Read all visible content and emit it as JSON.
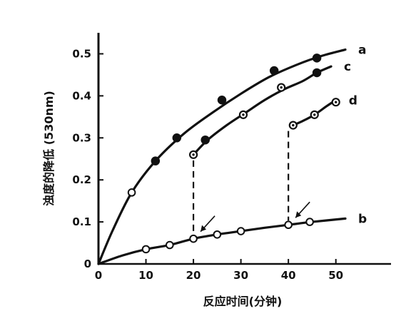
{
  "chart_data": {
    "type": "line",
    "xlabel": "反应时间(分钟)",
    "ylabel": "浊度的降低 (530nm)",
    "xlim": [
      0,
      52
    ],
    "ylim": [
      0,
      0.55
    ],
    "x_ticks": [
      0,
      10,
      20,
      30,
      40,
      50
    ],
    "x_tick_labels": [
      "0",
      "10",
      "20",
      "30",
      "40",
      "50"
    ],
    "y_ticks": [
      0,
      0.1,
      0.2,
      0.3,
      0.4,
      0.5
    ],
    "y_tick_labels": [
      "0",
      "0.1",
      "0.2",
      "0.3",
      "0.4",
      "0.5"
    ],
    "grid": false,
    "series": [
      {
        "name": "a",
        "curve": [
          [
            0,
            0
          ],
          [
            3,
            0.08
          ],
          [
            7,
            0.17
          ],
          [
            12,
            0.245
          ],
          [
            18,
            0.31
          ],
          [
            24,
            0.36
          ],
          [
            30,
            0.405
          ],
          [
            36,
            0.445
          ],
          [
            42,
            0.475
          ],
          [
            47,
            0.495
          ],
          [
            52,
            0.51
          ]
        ],
        "points": [
          {
            "x": 7,
            "y": 0.17,
            "marker": "open"
          },
          {
            "x": 12,
            "y": 0.245,
            "marker": "filled"
          },
          {
            "x": 16.5,
            "y": 0.3,
            "marker": "filled"
          },
          {
            "x": 26,
            "y": 0.39,
            "marker": "filled"
          },
          {
            "x": 37,
            "y": 0.46,
            "marker": "filled"
          },
          {
            "x": 46,
            "y": 0.49,
            "marker": "filled"
          }
        ]
      },
      {
        "name": "c",
        "curve": [
          [
            20,
            0.26
          ],
          [
            23,
            0.295
          ],
          [
            27,
            0.33
          ],
          [
            31,
            0.36
          ],
          [
            35,
            0.39
          ],
          [
            39,
            0.415
          ],
          [
            43,
            0.435
          ],
          [
            46,
            0.455
          ],
          [
            49,
            0.47
          ]
        ],
        "points": [
          {
            "x": 20,
            "y": 0.26,
            "marker": "open-dot"
          },
          {
            "x": 22.5,
            "y": 0.295,
            "marker": "filled"
          },
          {
            "x": 30.5,
            "y": 0.355,
            "marker": "open-dot"
          },
          {
            "x": 38.5,
            "y": 0.42,
            "marker": "open-dot"
          },
          {
            "x": 46,
            "y": 0.455,
            "marker": "filled"
          }
        ]
      },
      {
        "name": "d",
        "curve": [
          [
            41,
            0.33
          ],
          [
            43,
            0.34
          ],
          [
            45.5,
            0.355
          ],
          [
            48,
            0.375
          ],
          [
            50,
            0.39
          ]
        ],
        "points": [
          {
            "x": 41,
            "y": 0.33,
            "marker": "open-dot"
          },
          {
            "x": 45.5,
            "y": 0.355,
            "marker": "open-dot"
          },
          {
            "x": 50,
            "y": 0.385,
            "marker": "open-dot"
          }
        ]
      },
      {
        "name": "b",
        "curve": [
          [
            0,
            0
          ],
          [
            5,
            0.02
          ],
          [
            10,
            0.035
          ],
          [
            15,
            0.045
          ],
          [
            20,
            0.06
          ],
          [
            25,
            0.07
          ],
          [
            30,
            0.078
          ],
          [
            35,
            0.086
          ],
          [
            40,
            0.093
          ],
          [
            45,
            0.1
          ],
          [
            52,
            0.108
          ]
        ],
        "points": [
          {
            "x": 10,
            "y": 0.035,
            "marker": "open"
          },
          {
            "x": 15,
            "y": 0.045,
            "marker": "open"
          },
          {
            "x": 20,
            "y": 0.06,
            "marker": "open"
          },
          {
            "x": 25,
            "y": 0.07,
            "marker": "open"
          },
          {
            "x": 30,
            "y": 0.078,
            "marker": "open"
          },
          {
            "x": 40,
            "y": 0.093,
            "marker": "open"
          },
          {
            "x": 44.5,
            "y": 0.1,
            "marker": "open"
          }
        ]
      }
    ],
    "annotations": [
      {
        "type": "dashed-drop",
        "x": 20,
        "y_from": 0.06,
        "y_to": 0.26
      },
      {
        "type": "dashed-drop",
        "x": 40,
        "y_from": 0.093,
        "y_to": 0.33
      },
      {
        "type": "arrow",
        "x": 20,
        "y": 0.06
      },
      {
        "type": "arrow",
        "x": 40,
        "y": 0.093
      }
    ]
  }
}
